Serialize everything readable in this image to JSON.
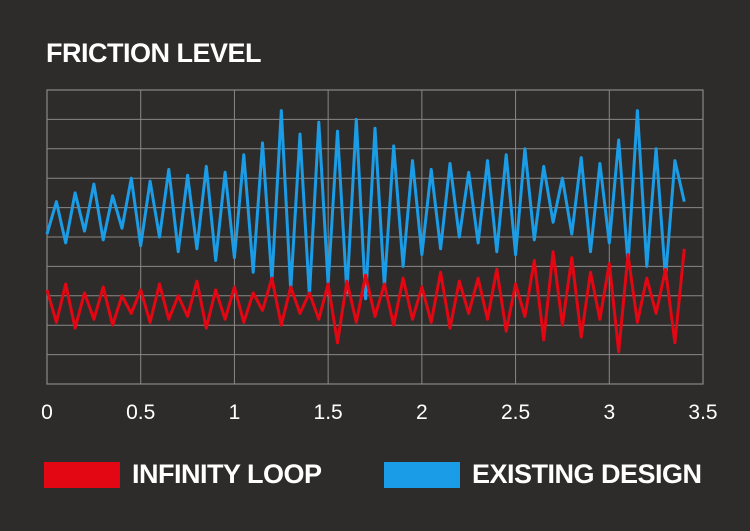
{
  "chart_data": {
    "type": "line",
    "title": "FRICTION LEVEL",
    "xlabel": "",
    "ylabel": "",
    "xlim": [
      0,
      3.5
    ],
    "ylim": [
      0,
      10
    ],
    "x_ticks": [
      0,
      0.5,
      1,
      1.5,
      2,
      2.5,
      3,
      3.5
    ],
    "x_tick_labels": [
      "0",
      "0.5",
      "1",
      "1.5",
      "2",
      "2.5",
      "3",
      "3.5"
    ],
    "y_gridlines": [
      1,
      2,
      3,
      4,
      5,
      6,
      7,
      8,
      9
    ],
    "grid": true,
    "legend_position": "bottom",
    "series": [
      {
        "name": "INFINITY LOOP",
        "color": "#e30613",
        "x": [
          0,
          0.05,
          0.1,
          0.15,
          0.2,
          0.25,
          0.3,
          0.35,
          0.4,
          0.45,
          0.5,
          0.55,
          0.6,
          0.65,
          0.7,
          0.75,
          0.8,
          0.85,
          0.9,
          0.95,
          1,
          1.05,
          1.1,
          1.15,
          1.2,
          1.25,
          1.3,
          1.35,
          1.4,
          1.45,
          1.5,
          1.55,
          1.6,
          1.65,
          1.7,
          1.75,
          1.8,
          1.85,
          1.9,
          1.95,
          2,
          2.05,
          2.1,
          2.15,
          2.2,
          2.25,
          2.3,
          2.35,
          2.4,
          2.45,
          2.5,
          2.55,
          2.6,
          2.65,
          2.7,
          2.75,
          2.8,
          2.85,
          2.9,
          2.95,
          3,
          3.05,
          3.1,
          3.15,
          3.2,
          3.25,
          3.3,
          3.35,
          3.4
        ],
        "values": [
          3.2,
          2.1,
          3.4,
          1.9,
          3.1,
          2.2,
          3.3,
          2.0,
          3.0,
          2.4,
          3.2,
          2.1,
          3.4,
          2.2,
          3.0,
          2.3,
          3.5,
          1.9,
          3.2,
          2.2,
          3.3,
          2.1,
          3.1,
          2.5,
          3.6,
          2.0,
          3.3,
          2.4,
          3.1,
          2.2,
          3.4,
          1.4,
          3.5,
          2.1,
          3.7,
          2.3,
          3.4,
          2.0,
          3.6,
          2.2,
          3.3,
          2.1,
          3.8,
          1.9,
          3.5,
          2.4,
          3.6,
          2.2,
          3.9,
          1.8,
          3.4,
          2.3,
          4.2,
          1.5,
          4.5,
          2.0,
          4.3,
          1.6,
          3.8,
          2.2,
          4.1,
          1.1,
          4.4,
          2.1,
          3.6,
          2.4,
          3.9,
          1.4,
          4.6
        ]
      },
      {
        "name": "EXISTING DESIGN",
        "color": "#1b9ce6",
        "x": [
          0,
          0.05,
          0.1,
          0.15,
          0.2,
          0.25,
          0.3,
          0.35,
          0.4,
          0.45,
          0.5,
          0.55,
          0.6,
          0.65,
          0.7,
          0.75,
          0.8,
          0.85,
          0.9,
          0.95,
          1,
          1.05,
          1.1,
          1.15,
          1.2,
          1.25,
          1.3,
          1.35,
          1.4,
          1.45,
          1.5,
          1.55,
          1.6,
          1.65,
          1.7,
          1.75,
          1.8,
          1.85,
          1.9,
          1.95,
          2,
          2.05,
          2.1,
          2.15,
          2.2,
          2.25,
          2.3,
          2.35,
          2.4,
          2.45,
          2.5,
          2.55,
          2.6,
          2.65,
          2.7,
          2.75,
          2.8,
          2.85,
          2.9,
          2.95,
          3,
          3.05,
          3.1,
          3.15,
          3.2,
          3.25,
          3.3,
          3.35,
          3.4
        ],
        "values": [
          5.1,
          6.2,
          4.8,
          6.5,
          5.2,
          6.8,
          4.9,
          6.4,
          5.3,
          7.0,
          4.7,
          6.9,
          5.0,
          7.3,
          4.5,
          7.1,
          4.6,
          7.4,
          4.2,
          7.2,
          4.3,
          7.8,
          3.8,
          8.2,
          3.5,
          9.3,
          3.2,
          8.5,
          3.0,
          8.9,
          3.4,
          8.6,
          3.1,
          9.0,
          2.9,
          8.7,
          3.3,
          8.1,
          4.0,
          7.6,
          4.4,
          7.3,
          4.6,
          7.5,
          5.0,
          7.2,
          4.8,
          7.6,
          4.5,
          7.8,
          4.4,
          8.0,
          4.9,
          7.4,
          5.5,
          7.0,
          5.1,
          7.7,
          4.5,
          7.5,
          4.8,
          8.3,
          4.1,
          9.3,
          4.0,
          8.0,
          3.6,
          7.6,
          6.2
        ]
      }
    ]
  }
}
